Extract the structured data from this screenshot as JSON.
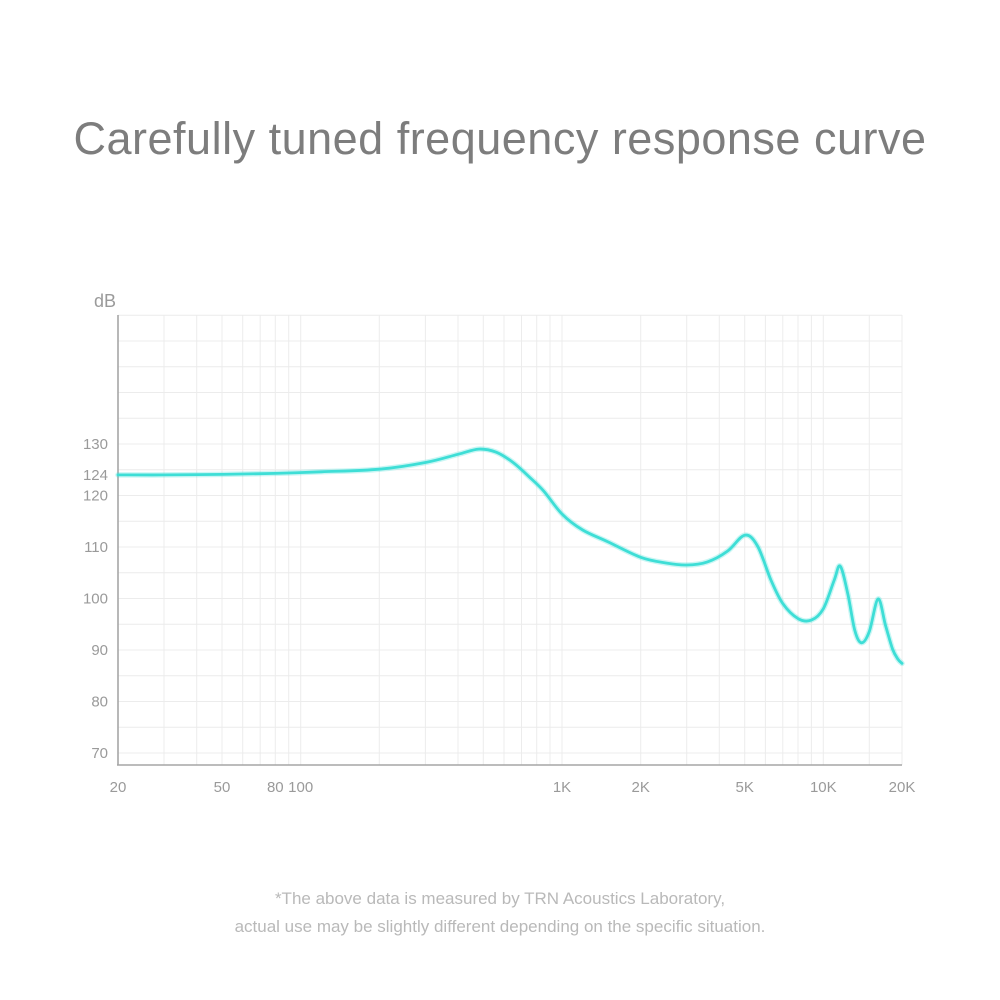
{
  "page": {
    "background": "#ffffff"
  },
  "title": {
    "text": "Carefully tuned frequency response curve",
    "color": "#7d7d7d"
  },
  "footnote": {
    "line1": "*The above data is measured by TRN Acoustics Laboratory,",
    "line2": "actual use may be slightly different depending on the specific situation.",
    "color": "#b9b9b9"
  },
  "chart_data": {
    "type": "line",
    "title": "",
    "unit_label": "dB",
    "xlabel": "",
    "ylabel": "dB",
    "legend": "none",
    "grid": "on",
    "x_axis": {
      "scale": "log",
      "min": 20,
      "max": 20000,
      "tick_labels": [
        {
          "value": 20,
          "label": "20"
        },
        {
          "value": 50,
          "label": "50"
        },
        {
          "value": 80,
          "label": "80"
        },
        {
          "value": 100,
          "label": "100"
        },
        {
          "value": 1000,
          "label": "1K"
        },
        {
          "value": 2000,
          "label": "2K"
        },
        {
          "value": 5000,
          "label": "5K"
        },
        {
          "value": 10000,
          "label": "10K"
        },
        {
          "value": 20000,
          "label": "20K"
        }
      ],
      "gridline_frequencies": [
        20,
        30,
        40,
        50,
        60,
        70,
        80,
        90,
        100,
        200,
        300,
        400,
        500,
        600,
        700,
        800,
        900,
        1000,
        2000,
        3000,
        4000,
        5000,
        6000,
        7000,
        8000,
        9000,
        10000,
        15000,
        20000
      ]
    },
    "y_axis": {
      "scale": "linear",
      "min": 67.7,
      "max": 155,
      "tick_labels": [
        {
          "value": 130,
          "label": "130"
        },
        {
          "value": 124,
          "label": "124"
        },
        {
          "value": 120,
          "label": "120"
        },
        {
          "value": 110,
          "label": "110"
        },
        {
          "value": 100,
          "label": "100"
        },
        {
          "value": 90,
          "label": "90"
        },
        {
          "value": 80,
          "label": "80"
        },
        {
          "value": 70,
          "label": "70"
        }
      ],
      "gridline_min": 70,
      "gridline_max": 155,
      "gridline_step": 5
    },
    "series": [
      {
        "name": "frequency-response",
        "color": "#3EDED6",
        "points_freq_hz_db": [
          [
            20,
            124.0
          ],
          [
            30,
            124.0
          ],
          [
            50,
            124.1
          ],
          [
            80,
            124.3
          ],
          [
            120,
            124.6
          ],
          [
            200,
            125.1
          ],
          [
            300,
            126.4
          ],
          [
            400,
            128.0
          ],
          [
            480,
            129.0
          ],
          [
            560,
            128.4
          ],
          [
            650,
            126.4
          ],
          [
            750,
            123.6
          ],
          [
            850,
            120.9
          ],
          [
            1000,
            116.4
          ],
          [
            1200,
            113.3
          ],
          [
            1500,
            111.0
          ],
          [
            2000,
            108.0
          ],
          [
            2500,
            106.9
          ],
          [
            3000,
            106.5
          ],
          [
            3600,
            107.1
          ],
          [
            4300,
            109.2
          ],
          [
            5000,
            112.3
          ],
          [
            5600,
            110.2
          ],
          [
            6300,
            103.6
          ],
          [
            7000,
            99.0
          ],
          [
            8000,
            96.1
          ],
          [
            9000,
            95.8
          ],
          [
            10000,
            98.0
          ],
          [
            11000,
            103.5
          ],
          [
            11600,
            106.3
          ],
          [
            12400,
            101.0
          ],
          [
            13200,
            93.8
          ],
          [
            14000,
            91.4
          ],
          [
            15000,
            93.6
          ],
          [
            16200,
            99.9
          ],
          [
            17300,
            94.8
          ],
          [
            18400,
            90.2
          ],
          [
            19300,
            88.2
          ],
          [
            20000,
            87.4
          ]
        ]
      }
    ],
    "colors": {
      "grid": "#ececec",
      "axis": "#a6a6a6",
      "tick_text": "#9a9a9a",
      "curve": "#3EDED6"
    }
  }
}
